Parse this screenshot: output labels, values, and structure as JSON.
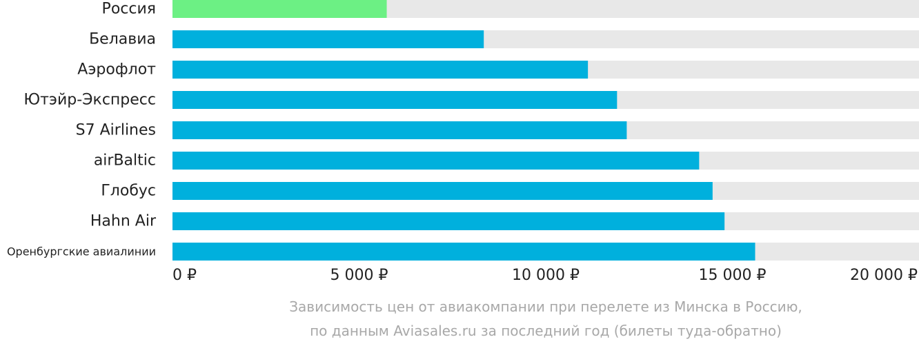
{
  "chart_data": {
    "type": "bar",
    "orientation": "horizontal",
    "categories": [
      "Россия",
      "Белавиа",
      "Аэрофлот",
      "Ютэйр-Экспресс",
      "S7 Airlines",
      "airBaltic",
      "Глобус",
      "Hahn Air",
      "Оренбургские авиалинии"
    ],
    "values": [
      5740,
      8340,
      11130,
      11910,
      12170,
      14110,
      14470,
      14790,
      15610
    ],
    "highlight_index": 0,
    "xlim": [
      0,
      20000
    ],
    "ticks": [
      0,
      5000,
      10000,
      15000,
      20000
    ],
    "tick_labels": [
      "0 ₽",
      "5 000 ₽",
      "10 000 ₽",
      "15 000 ₽",
      "20 000 ₽"
    ],
    "grid": false,
    "colors": {
      "bar": "#00b0dd",
      "highlight": "#6cf084",
      "track": "#e8e8e8"
    }
  },
  "caption": {
    "line1": "Зависимость цен от авиакомпании при перелете из Минска в Россию,",
    "line2": "по данным Aviasales.ru за последний год (билеты туда-обратно)"
  }
}
